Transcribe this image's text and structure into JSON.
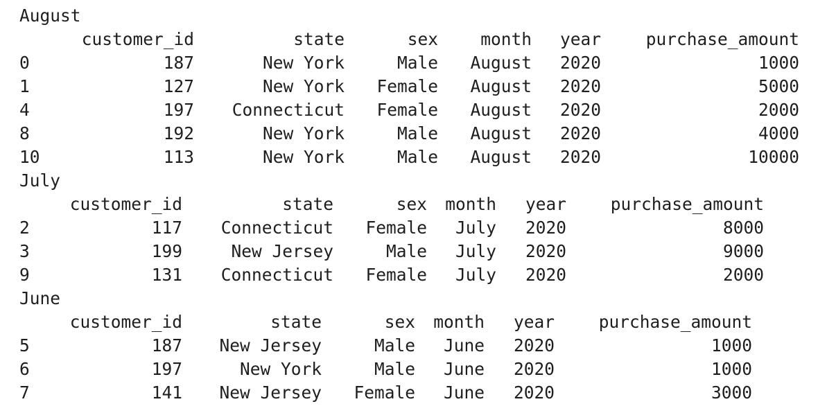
{
  "groups": [
    {
      "name": "August",
      "columns": [
        "customer_id",
        "state",
        "sex",
        "month",
        "year",
        "purchase_amount"
      ],
      "rows": [
        {
          "index": "0",
          "values": [
            "187",
            "New York",
            "Male",
            "August",
            "2020",
            "1000"
          ]
        },
        {
          "index": "1",
          "values": [
            "127",
            "New York",
            "Female",
            "August",
            "2020",
            "5000"
          ]
        },
        {
          "index": "4",
          "values": [
            "197",
            "Connecticut",
            "Female",
            "August",
            "2020",
            "2000"
          ]
        },
        {
          "index": "8",
          "values": [
            "192",
            "New York",
            "Male",
            "August",
            "2020",
            "4000"
          ]
        },
        {
          "index": "10",
          "values": [
            "113",
            "New York",
            "Male",
            "August",
            "2020",
            "10000"
          ]
        }
      ]
    },
    {
      "name": "July",
      "columns": [
        "customer_id",
        "state",
        "sex",
        "month",
        "year",
        "purchase_amount"
      ],
      "rows": [
        {
          "index": "2",
          "values": [
            "117",
            "Connecticut",
            "Female",
            "July",
            "2020",
            "8000"
          ]
        },
        {
          "index": "3",
          "values": [
            "199",
            "New Jersey",
            "Male",
            "July",
            "2020",
            "9000"
          ]
        },
        {
          "index": "9",
          "values": [
            "131",
            "Connecticut",
            "Female",
            "July",
            "2020",
            "2000"
          ]
        }
      ]
    },
    {
      "name": "June",
      "columns": [
        "customer_id",
        "state",
        "sex",
        "month",
        "year",
        "purchase_amount"
      ],
      "rows": [
        {
          "index": "5",
          "values": [
            "187",
            "New Jersey",
            "Male",
            "June",
            "2020",
            "1000"
          ]
        },
        {
          "index": "6",
          "values": [
            "197",
            "New York",
            "Male",
            "June",
            "2020",
            "1000"
          ]
        },
        {
          "index": "7",
          "values": [
            "141",
            "New Jersey",
            "Female",
            "June",
            "2020",
            "3000"
          ]
        }
      ]
    }
  ]
}
